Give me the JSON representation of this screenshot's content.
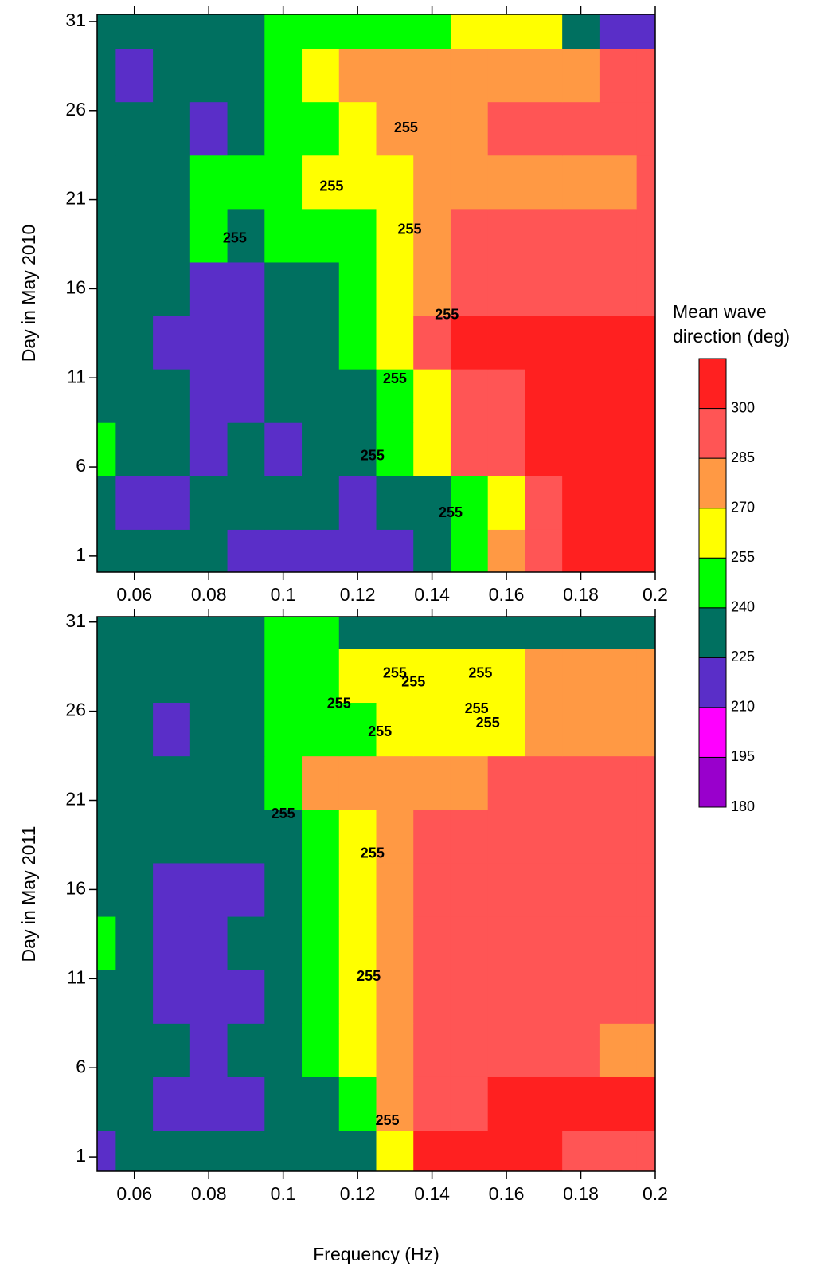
{
  "chart_data": [
    {
      "type": "contour",
      "ylabel": "Day in May 2010",
      "x": [
        0.05,
        0.06,
        0.07,
        0.08,
        0.09,
        0.1,
        0.11,
        0.12,
        0.13,
        0.14,
        0.15,
        0.16,
        0.17,
        0.18,
        0.19,
        0.2
      ],
      "y": [
        1,
        4,
        7,
        10,
        13,
        16,
        19,
        22,
        25,
        28,
        31
      ],
      "z": [
        [
          232,
          232,
          232,
          225,
          218,
          218,
          218,
          218,
          218,
          232,
          248,
          270,
          290,
          305,
          305,
          305
        ],
        [
          232,
          218,
          218,
          232,
          232,
          232,
          232,
          218,
          232,
          232,
          248,
          262,
          285,
          305,
          305,
          305
        ],
        [
          240,
          232,
          232,
          218,
          232,
          218,
          232,
          232,
          248,
          265,
          285,
          292,
          300,
          305,
          305,
          305
        ],
        [
          232,
          232,
          232,
          218,
          218,
          232,
          232,
          232,
          248,
          262,
          285,
          292,
          300,
          305,
          305,
          305
        ],
        [
          232,
          232,
          218,
          218,
          218,
          232,
          232,
          248,
          262,
          290,
          300,
          305,
          305,
          305,
          305,
          305
        ],
        [
          232,
          232,
          232,
          218,
          218,
          232,
          232,
          248,
          262,
          270,
          285,
          290,
          292,
          292,
          292,
          292
        ],
        [
          232,
          232,
          232,
          248,
          232,
          248,
          248,
          248,
          262,
          278,
          292,
          292,
          292,
          292,
          292,
          285
        ],
        [
          232,
          232,
          232,
          248,
          248,
          248,
          255,
          262,
          262,
          278,
          278,
          280,
          278,
          278,
          278,
          285
        ],
        [
          232,
          232,
          232,
          218,
          232,
          248,
          248,
          262,
          278,
          278,
          278,
          285,
          290,
          292,
          292,
          292
        ],
        [
          232,
          218,
          232,
          232,
          232,
          248,
          262,
          278,
          278,
          278,
          278,
          278,
          278,
          278,
          285,
          285
        ],
        [
          232,
          232,
          232,
          232,
          232,
          240,
          248,
          248,
          248,
          248,
          262,
          262,
          262,
          232,
          218,
          218
        ]
      ],
      "xlim": [
        0.05,
        0.2
      ],
      "xticks": [
        0.06,
        0.08,
        0.1,
        0.12,
        0.14,
        0.16,
        0.18,
        0.2
      ],
      "ylim": [
        0.1,
        31.4
      ],
      "yticks": [
        1,
        6,
        11,
        16,
        21,
        26,
        31
      ],
      "contour_labels": [
        {
          "text": "255",
          "x": 0.133,
          "y": 25.0
        },
        {
          "text": "255",
          "x": 0.113,
          "y": 21.7
        },
        {
          "text": "255",
          "x": 0.087,
          "y": 18.8
        },
        {
          "text": "255",
          "x": 0.134,
          "y": 19.3
        },
        {
          "text": "255",
          "x": 0.144,
          "y": 14.5
        },
        {
          "text": "255",
          "x": 0.13,
          "y": 10.9
        },
        {
          "text": "255",
          "x": 0.124,
          "y": 6.6
        },
        {
          "text": "255",
          "x": 0.145,
          "y": 3.4
        }
      ],
      "colorbar": {
        "title": "Mean wave direction (deg)",
        "levels": [
          180,
          195,
          210,
          225,
          240,
          255,
          270,
          285,
          300,
          315
        ],
        "ticks": [
          180,
          195,
          210,
          225,
          240,
          255,
          270,
          285,
          300
        ],
        "colors": [
          "#9900cc",
          "#ff00ff",
          "#5a2ec8",
          "#007060",
          "#00ff00",
          "#ffff00",
          "#ff9944",
          "#ff5555",
          "#ff2020"
        ]
      }
    },
    {
      "type": "contour",
      "ylabel": "Day in May 2011",
      "xlabel": "Frequency (Hz)",
      "x": [
        0.05,
        0.06,
        0.07,
        0.08,
        0.09,
        0.1,
        0.11,
        0.12,
        0.13,
        0.14,
        0.15,
        0.16,
        0.17,
        0.18,
        0.19,
        0.2
      ],
      "y": [
        1,
        4,
        7,
        10,
        13,
        16,
        19,
        22,
        25,
        28,
        31
      ],
      "z": [
        [
          218,
          232,
          232,
          232,
          232,
          232,
          232,
          232,
          262,
          300,
          305,
          305,
          305,
          292,
          292,
          292
        ],
        [
          232,
          232,
          218,
          218,
          218,
          232,
          232,
          248,
          270,
          292,
          292,
          300,
          300,
          300,
          300,
          300
        ],
        [
          232,
          232,
          232,
          218,
          232,
          232,
          248,
          262,
          278,
          292,
          292,
          292,
          292,
          292,
          278,
          278
        ],
        [
          232,
          232,
          218,
          218,
          218,
          232,
          248,
          262,
          278,
          292,
          292,
          292,
          292,
          292,
          292,
          292
        ],
        [
          248,
          232,
          218,
          218,
          232,
          232,
          248,
          262,
          278,
          292,
          292,
          292,
          292,
          292,
          292,
          292
        ],
        [
          232,
          232,
          218,
          218,
          218,
          232,
          248,
          262,
          278,
          292,
          292,
          292,
          292,
          292,
          292,
          292
        ],
        [
          232,
          232,
          232,
          232,
          232,
          232,
          248,
          262,
          278,
          285,
          292,
          292,
          292,
          292,
          292,
          292
        ],
        [
          232,
          232,
          232,
          232,
          232,
          248,
          278,
          278,
          278,
          278,
          278,
          292,
          292,
          292,
          292,
          292
        ],
        [
          232,
          232,
          218,
          232,
          232,
          248,
          248,
          248,
          262,
          262,
          262,
          262,
          278,
          278,
          278,
          278
        ],
        [
          232,
          232,
          232,
          232,
          232,
          248,
          248,
          262,
          262,
          262,
          262,
          262,
          278,
          278,
          278,
          278
        ],
        [
          232,
          232,
          232,
          232,
          232,
          248,
          248,
          232,
          232,
          232,
          232,
          232,
          232,
          232,
          232,
          232
        ]
      ],
      "xlim": [
        0.05,
        0.2
      ],
      "xticks": [
        0.06,
        0.08,
        0.1,
        0.12,
        0.14,
        0.16,
        0.18,
        0.2
      ],
      "ylim": [
        0.2,
        31.3
      ],
      "yticks": [
        1,
        6,
        11,
        16,
        21,
        26,
        31
      ],
      "contour_labels": [
        {
          "text": "255",
          "x": 0.13,
          "y": 28.1
        },
        {
          "text": "255",
          "x": 0.135,
          "y": 27.6
        },
        {
          "text": "255",
          "x": 0.153,
          "y": 28.1
        },
        {
          "text": "255",
          "x": 0.115,
          "y": 26.4
        },
        {
          "text": "255",
          "x": 0.152,
          "y": 26.1
        },
        {
          "text": "255",
          "x": 0.155,
          "y": 25.3
        },
        {
          "text": "255",
          "x": 0.126,
          "y": 24.8
        },
        {
          "text": "255",
          "x": 0.1,
          "y": 20.2
        },
        {
          "text": "255",
          "x": 0.124,
          "y": 18.0
        },
        {
          "text": "255",
          "x": 0.123,
          "y": 11.1
        },
        {
          "text": "255",
          "x": 0.128,
          "y": 3.0
        }
      ]
    }
  ]
}
